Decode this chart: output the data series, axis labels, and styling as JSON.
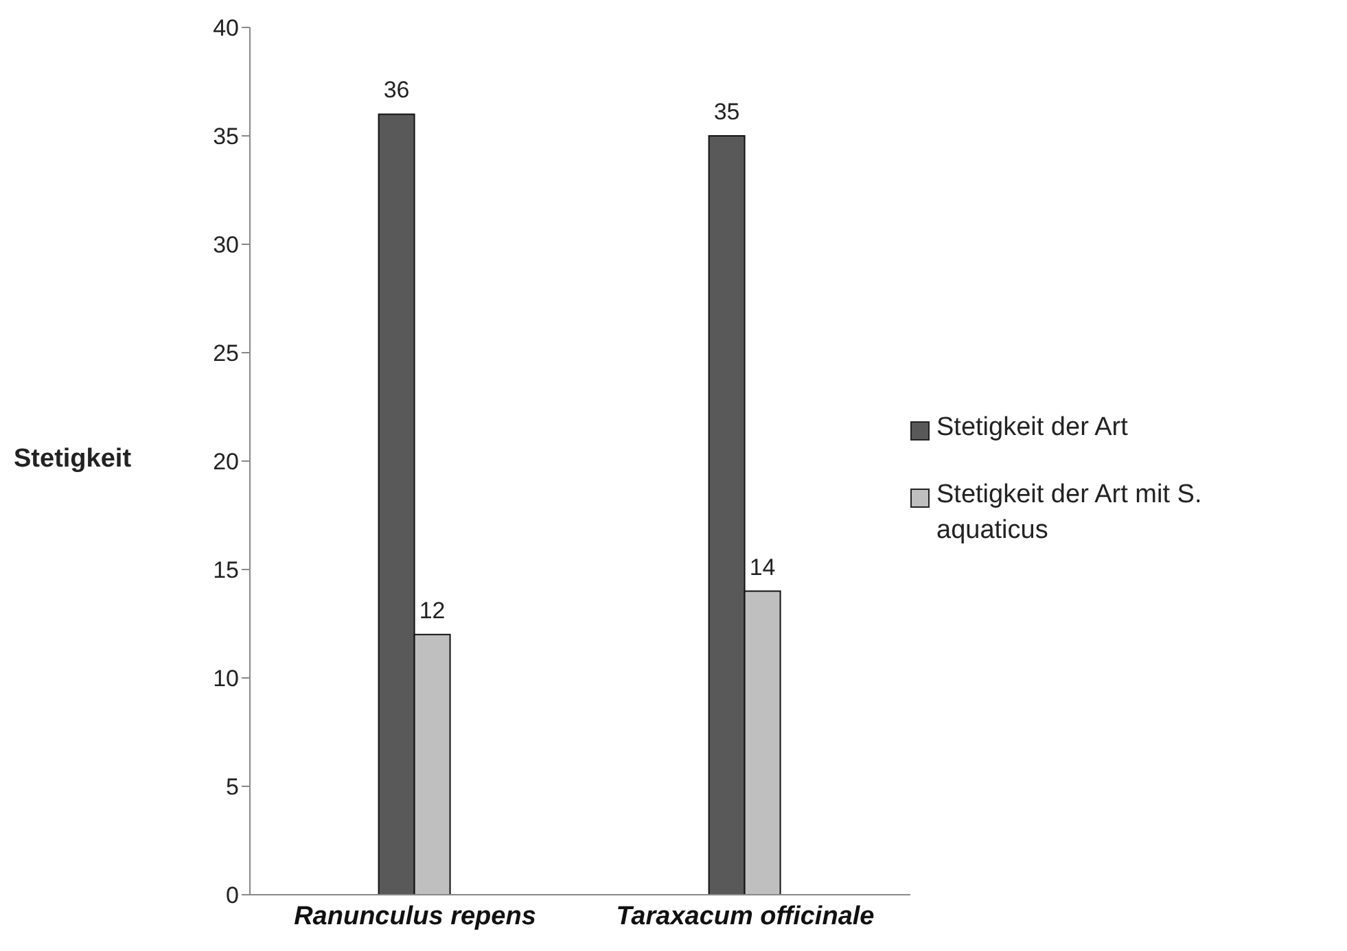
{
  "chart_data": {
    "type": "bar",
    "ylabel": "Stetigkeit",
    "categories": [
      "Ranunculus repens",
      "Taraxacum officinale"
    ],
    "series": [
      {
        "name": "Stetigkeit der Art",
        "color": "#595959",
        "values": [
          36,
          35
        ]
      },
      {
        "name": "Stetigkeit der Art mit S. aquaticus",
        "color": "#bfbfbf",
        "values": [
          12,
          14
        ]
      }
    ],
    "ylim": [
      0,
      40
    ],
    "yticks": [
      0,
      5,
      10,
      15,
      20,
      25,
      30,
      35,
      40
    ],
    "grid": false,
    "legend": "right",
    "data_labels": true
  }
}
